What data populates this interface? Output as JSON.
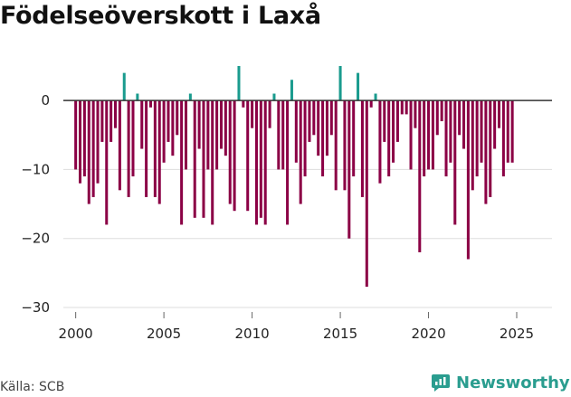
{
  "chart_data": {
    "type": "bar",
    "title": "Födelseöverskott i Laxå",
    "xlabel": "",
    "ylabel": "",
    "ylim": [
      -30,
      5
    ],
    "xlim": [
      1999.3,
      2027.0
    ],
    "yticks": [
      0,
      -10,
      -20,
      -30
    ],
    "ytick_labels": [
      "0",
      "−10",
      "−20",
      "−30"
    ],
    "xticks": [
      2000,
      2005,
      2010,
      2015,
      2020,
      2025
    ],
    "xtick_labels": [
      "2000",
      "2005",
      "2010",
      "2015",
      "2020",
      "2025"
    ],
    "grid": true,
    "start_year": 2000,
    "period": "quarterly",
    "positive_color": "#1a9b8e",
    "negative_color": "#8b0045",
    "values": [
      -10,
      -12,
      -11,
      -15,
      -14,
      -12,
      -6,
      -18,
      -6,
      -4,
      -13,
      4,
      -14,
      -11,
      1,
      -7,
      -14,
      -1,
      -14,
      -15,
      -9,
      -6,
      -8,
      -5,
      -18,
      -10,
      1,
      -17,
      -7,
      -17,
      -10,
      -18,
      -10,
      -7,
      -8,
      -15,
      -16,
      5,
      -1,
      -16,
      -4,
      -18,
      -17,
      -18,
      -4,
      1,
      -10,
      -10,
      -18,
      3,
      -9,
      -15,
      -11,
      -6,
      -5,
      -8,
      -11,
      -8,
      -5,
      -13,
      5,
      -13,
      -20,
      -11,
      4,
      -14,
      -27,
      -1,
      1,
      -12,
      -6,
      -11,
      -9,
      -6,
      -2,
      -2,
      -10,
      -4,
      -22,
      -11,
      -10,
      -10,
      -5,
      -3,
      -11,
      -9,
      -18,
      -5,
      -7,
      -23,
      -13,
      -11,
      -9,
      -15,
      -14,
      -7,
      -4,
      -11,
      -9,
      -9
    ],
    "source": "Källa: SCB",
    "brand": "Newsworthy"
  }
}
